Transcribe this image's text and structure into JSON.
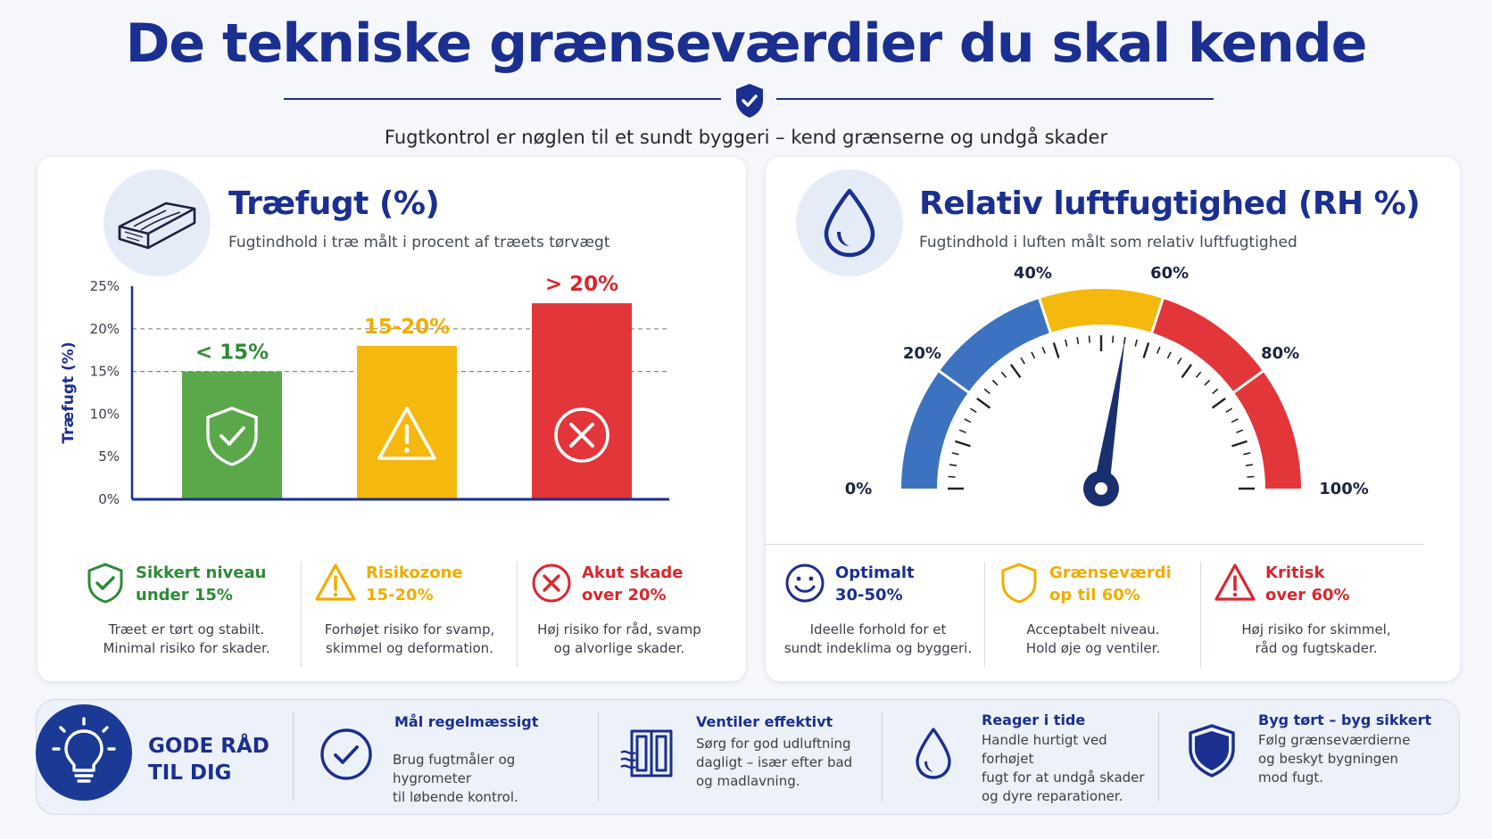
{
  "header": {
    "title": "De tekniske grænseværdier du skal kende",
    "subtitle": "Fugtkontrol er nøglen til et sundt byggeri – kend grænserne og undgå skader"
  },
  "colors": {
    "navy": "#1a2f8f",
    "green": "#5aa84a",
    "yellow": "#f5b80e",
    "red": "#e2363a",
    "blue": "#3d72c0"
  },
  "wood": {
    "title": "Træfugt (%)",
    "subtitle": "Fugtindhold i træ målt i procent af træets tørvægt",
    "icon": "wood-plank-icon",
    "cards": [
      {
        "head": "Sikkert niveau\nunder 15%",
        "body": "Træet er tørt og stabilt.\nMinimal risiko for skader.",
        "icon": "shield-check-icon",
        "color": "#2e8a37"
      },
      {
        "head": "Risikozone\n15-20%",
        "body": "Forhøjet risiko for svamp,\nskimmel og deformation.",
        "icon": "warning-icon",
        "color": "#f0ad00"
      },
      {
        "head": "Akut skade\nover 20%",
        "body": "Høj risiko for råd, svamp\nog alvorlige skader.",
        "icon": "x-circle-icon",
        "color": "#d7282e"
      }
    ]
  },
  "rh": {
    "title": "Relativ luftfugtighed  (RH %)",
    "subtitle": "Fugtindhold i luften målt som relativ luftfugtighed",
    "icon": "water-drop-icon",
    "cards": [
      {
        "head": "Optimalt\n30-50%",
        "body": "Ideelle forhold for et\nsundt indeklima og byggeri.",
        "icon": "smiley-icon",
        "color": "#1a2f8f"
      },
      {
        "head": "Grænseværdi\nop til 60%",
        "body": "Acceptabelt niveau.\nHold øje og ventiler.",
        "icon": "shield-icon",
        "color": "#f0ad00"
      },
      {
        "head": "Kritisk\nover 60%",
        "body": "Høj risiko for skimmel,\nråd og fugtskader.",
        "icon": "warning-icon",
        "color": "#d7282e"
      }
    ]
  },
  "chart_data": [
    {
      "type": "bar",
      "ylabel": "Træfugt (%)",
      "ylim": [
        0,
        25
      ],
      "yticks": [
        "0%",
        "5%",
        "10%",
        "15%",
        "20%",
        "25%"
      ],
      "grid": "dashed at 15% and 20%",
      "categories": [
        "< 15%",
        "15-20%",
        "> 20%"
      ],
      "values": [
        15,
        18,
        23
      ],
      "colors": [
        "#5aa84a",
        "#f5b80e",
        "#e2363a"
      ],
      "bar_icons": [
        "shield-check-icon",
        "warning-icon",
        "x-circle-icon"
      ]
    },
    {
      "type": "gauge",
      "range": [
        0,
        100
      ],
      "tick_labels": [
        "0%",
        "20%",
        "40%",
        "60%",
        "80%",
        "100%"
      ],
      "bands": [
        {
          "from": 0,
          "to": 40,
          "color": "#3d72c0"
        },
        {
          "from": 40,
          "to": 60,
          "color": "#f5b80e"
        },
        {
          "from": 60,
          "to": 100,
          "color": "#e2363a"
        }
      ],
      "needle_value": 55
    }
  ],
  "tips": {
    "title": "GODE RÅD\nTIL DIG",
    "icon": "lightbulb-icon",
    "items": [
      {
        "head": "Mål regelmæssigt",
        "body": "Brug fugtmåler og hygrometer\ntil løbende kontrol.",
        "icon": "check-circle-icon"
      },
      {
        "head": "Ventiler effektivt",
        "body": "Sørg for god udluftning\ndagligt – især efter bad\nog madlavning.",
        "icon": "window-icon"
      },
      {
        "head": "Reager i tide",
        "body": "Handle hurtigt ved forhøjet\nfugt for at undgå skader\nog dyre reparationer.",
        "icon": "water-drop-icon"
      },
      {
        "head": "Byg tørt – byg sikkert",
        "body": "Følg grænseværdierne\nog beskyt bygningen\nmod fugt.",
        "icon": "shield-icon"
      }
    ]
  }
}
